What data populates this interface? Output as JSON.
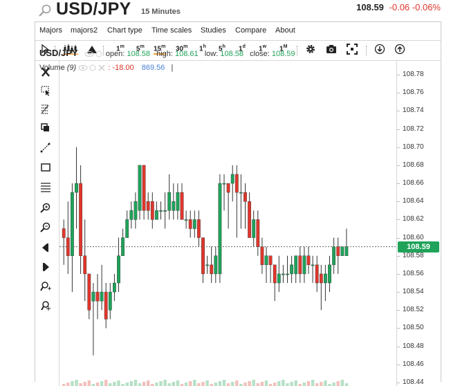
{
  "header": {
    "symbol": "USD/JPY",
    "interval": "15 Minutes",
    "last": "108.59",
    "change": "-0.06",
    "change_pct": "-0.06%",
    "search_icon": "search-icon"
  },
  "menu": [
    "Majors",
    "majors2",
    "Chart type",
    "Time scales",
    "Studies",
    "Compare",
    "About"
  ],
  "toolbar": {
    "timeframes": [
      {
        "base": "1",
        "sup": "m"
      },
      {
        "base": "5",
        "sup": "m"
      },
      {
        "base": "15",
        "sup": "m"
      },
      {
        "base": "30",
        "sup": "m"
      },
      {
        "base": "1",
        "sup": "h"
      },
      {
        "base": "5",
        "sup": "h"
      },
      {
        "base": "1",
        "sup": "d"
      },
      {
        "base": "1",
        "sup": "w"
      },
      {
        "base": "1",
        "sup": "M"
      }
    ],
    "active_timeframe": "15m",
    "icons": [
      "cursor-icon",
      "candles-icon",
      "mountain-icon",
      "gear-icon",
      "camera-icon",
      "fullscreen-icon",
      "download-icon",
      "upload-icon"
    ]
  },
  "drawing_tools": [
    "close-icon",
    "select-icon",
    "fib-icon",
    "clone-icon",
    "line-icon",
    "rectangle-icon",
    "hlines-icon",
    "zoom-in-icon",
    "zoom-out-icon",
    "arrow-left-icon",
    "arrow-right-icon",
    "magnet-icon",
    "crosshair-icon"
  ],
  "legend": {
    "symbol": "USD/JPY",
    "open_label": "open:",
    "open": "108.58",
    "high_label": "high:",
    "high": "108.61",
    "low_label": "low:",
    "low": "108.58",
    "close_label": "close:",
    "close": "108.59",
    "volume_label": "Volume",
    "volume_param": "(9)",
    "volume_change": ": -18.00",
    "volume_value": "869.56",
    "cursor": "|"
  },
  "axis": {
    "ticks": [
      "108.78",
      "108.76",
      "108.74",
      "108.72",
      "108.70",
      "108.68",
      "108.66",
      "108.64",
      "108.62",
      "108.60",
      "108.58",
      "108.56",
      "108.54",
      "108.52",
      "108.50",
      "108.48",
      "108.46",
      "108.44"
    ],
    "current_price": "108.59"
  },
  "colors": {
    "up": "#1fa35a",
    "down": "#e0362c",
    "active": "#f0a030"
  },
  "chart_data": {
    "type": "candlestick",
    "yrange": [
      108.43,
      108.79
    ],
    "candles": [
      {
        "o": 108.61,
        "h": 108.62,
        "l": 108.57,
        "c": 108.6
      },
      {
        "o": 108.6,
        "h": 108.64,
        "l": 108.56,
        "c": 108.58
      },
      {
        "o": 108.58,
        "h": 108.66,
        "l": 108.54,
        "c": 108.65
      },
      {
        "o": 108.65,
        "h": 108.7,
        "l": 108.61,
        "c": 108.66
      },
      {
        "o": 108.66,
        "h": 108.68,
        "l": 108.56,
        "c": 108.58
      },
      {
        "o": 108.58,
        "h": 108.62,
        "l": 108.53,
        "c": 108.56
      },
      {
        "o": 108.56,
        "h": 108.56,
        "l": 108.51,
        "c": 108.52
      },
      {
        "o": 108.53,
        "h": 108.55,
        "l": 108.47,
        "c": 108.54
      },
      {
        "o": 108.54,
        "h": 108.56,
        "l": 108.51,
        "c": 108.53
      },
      {
        "o": 108.53,
        "h": 108.57,
        "l": 108.52,
        "c": 108.54
      },
      {
        "o": 108.54,
        "h": 108.55,
        "l": 108.5,
        "c": 108.51
      },
      {
        "o": 108.52,
        "h": 108.55,
        "l": 108.51,
        "c": 108.54
      },
      {
        "o": 108.54,
        "h": 108.56,
        "l": 108.53,
        "c": 108.55
      },
      {
        "o": 108.55,
        "h": 108.6,
        "l": 108.54,
        "c": 108.58
      },
      {
        "o": 108.58,
        "h": 108.61,
        "l": 108.58,
        "c": 108.6
      },
      {
        "o": 108.6,
        "h": 108.63,
        "l": 108.6,
        "c": 108.62
      },
      {
        "o": 108.62,
        "h": 108.64,
        "l": 108.61,
        "c": 108.63
      },
      {
        "o": 108.62,
        "h": 108.65,
        "l": 108.61,
        "c": 108.64
      },
      {
        "o": 108.63,
        "h": 108.68,
        "l": 108.62,
        "c": 108.68
      },
      {
        "o": 108.68,
        "h": 108.68,
        "l": 108.62,
        "c": 108.63
      },
      {
        "o": 108.64,
        "h": 108.65,
        "l": 108.62,
        "c": 108.63
      },
      {
        "o": 108.64,
        "h": 108.65,
        "l": 108.61,
        "c": 108.62
      },
      {
        "o": 108.62,
        "h": 108.64,
        "l": 108.62,
        "c": 108.63
      },
      {
        "o": 108.63,
        "h": 108.64,
        "l": 108.62,
        "c": 108.63
      },
      {
        "o": 108.63,
        "h": 108.65,
        "l": 108.61,
        "c": 108.63
      },
      {
        "o": 108.63,
        "h": 108.67,
        "l": 108.62,
        "c": 108.65
      },
      {
        "o": 108.63,
        "h": 108.66,
        "l": 108.62,
        "c": 108.64
      },
      {
        "o": 108.63,
        "h": 108.66,
        "l": 108.62,
        "c": 108.65
      },
      {
        "o": 108.65,
        "h": 108.66,
        "l": 108.62,
        "c": 108.62
      },
      {
        "o": 108.62,
        "h": 108.63,
        "l": 108.61,
        "c": 108.62
      },
      {
        "o": 108.62,
        "h": 108.63,
        "l": 108.6,
        "c": 108.61
      },
      {
        "o": 108.61,
        "h": 108.63,
        "l": 108.6,
        "c": 108.62
      },
      {
        "o": 108.62,
        "h": 108.63,
        "l": 108.59,
        "c": 108.6
      },
      {
        "o": 108.6,
        "h": 108.6,
        "l": 108.55,
        "c": 108.56
      },
      {
        "o": 108.57,
        "h": 108.58,
        "l": 108.56,
        "c": 108.57
      },
      {
        "o": 108.57,
        "h": 108.59,
        "l": 108.55,
        "c": 108.56
      },
      {
        "o": 108.56,
        "h": 108.59,
        "l": 108.55,
        "c": 108.58
      },
      {
        "o": 108.56,
        "h": 108.67,
        "l": 108.55,
        "c": 108.66
      },
      {
        "o": 108.66,
        "h": 108.67,
        "l": 108.63,
        "c": 108.66
      },
      {
        "o": 108.66,
        "h": 108.66,
        "l": 108.61,
        "c": 108.65
      },
      {
        "o": 108.66,
        "h": 108.68,
        "l": 108.64,
        "c": 108.67
      },
      {
        "o": 108.67,
        "h": 108.68,
        "l": 108.6,
        "c": 108.65
      },
      {
        "o": 108.65,
        "h": 108.67,
        "l": 108.61,
        "c": 108.65
      },
      {
        "o": 108.65,
        "h": 108.66,
        "l": 108.61,
        "c": 108.64
      },
      {
        "o": 108.64,
        "h": 108.65,
        "l": 108.6,
        "c": 108.6
      },
      {
        "o": 108.6,
        "h": 108.63,
        "l": 108.59,
        "c": 108.62
      },
      {
        "o": 108.62,
        "h": 108.63,
        "l": 108.58,
        "c": 108.59
      },
      {
        "o": 108.59,
        "h": 108.6,
        "l": 108.56,
        "c": 108.57
      },
      {
        "o": 108.57,
        "h": 108.59,
        "l": 108.55,
        "c": 108.58
      },
      {
        "o": 108.58,
        "h": 108.58,
        "l": 108.55,
        "c": 108.57
      },
      {
        "o": 108.57,
        "h": 108.57,
        "l": 108.53,
        "c": 108.55
      },
      {
        "o": 108.55,
        "h": 108.58,
        "l": 108.54,
        "c": 108.56
      },
      {
        "o": 108.56,
        "h": 108.57,
        "l": 108.55,
        "c": 108.56
      },
      {
        "o": 108.56,
        "h": 108.58,
        "l": 108.55,
        "c": 108.56
      },
      {
        "o": 108.56,
        "h": 108.58,
        "l": 108.55,
        "c": 108.57
      },
      {
        "o": 108.56,
        "h": 108.58,
        "l": 108.55,
        "c": 108.58
      },
      {
        "o": 108.58,
        "h": 108.59,
        "l": 108.55,
        "c": 108.56
      },
      {
        "o": 108.56,
        "h": 108.59,
        "l": 108.55,
        "c": 108.58
      },
      {
        "o": 108.58,
        "h": 108.59,
        "l": 108.56,
        "c": 108.57
      },
      {
        "o": 108.57,
        "h": 108.58,
        "l": 108.55,
        "c": 108.57
      },
      {
        "o": 108.57,
        "h": 108.58,
        "l": 108.54,
        "c": 108.55
      },
      {
        "o": 108.56,
        "h": 108.57,
        "l": 108.52,
        "c": 108.55
      },
      {
        "o": 108.55,
        "h": 108.57,
        "l": 108.53,
        "c": 108.56
      },
      {
        "o": 108.55,
        "h": 108.58,
        "l": 108.54,
        "c": 108.57
      },
      {
        "o": 108.57,
        "h": 108.6,
        "l": 108.56,
        "c": 108.59
      },
      {
        "o": 108.59,
        "h": 108.6,
        "l": 108.56,
        "c": 108.58
      },
      {
        "o": 108.58,
        "h": 108.59,
        "l": 108.58,
        "c": 108.59
      },
      {
        "o": 108.58,
        "h": 108.61,
        "l": 108.58,
        "c": 108.59
      }
    ]
  }
}
